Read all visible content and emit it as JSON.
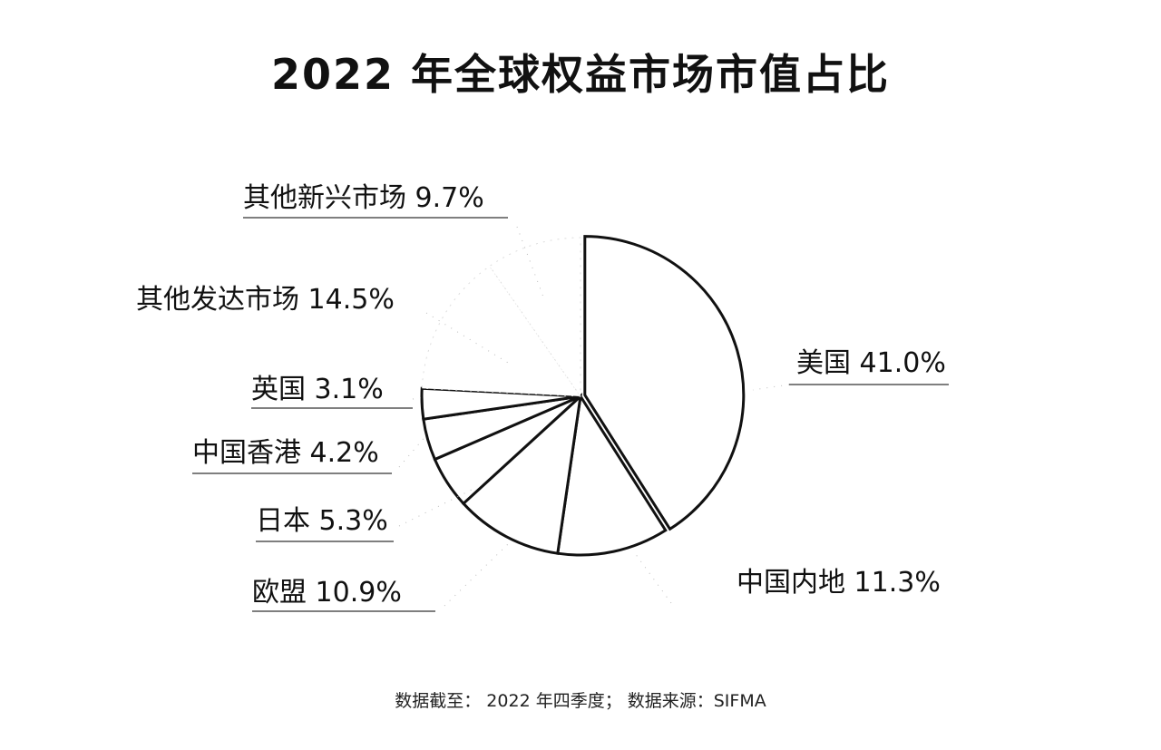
{
  "title": "2022 年全球权益市场市值占比",
  "footer": "数据截至： 2022 年四季度； 数据来源：SIFMA",
  "chart_data": {
    "type": "pie",
    "title": "2022 年全球权益市场市值占比",
    "unit": "%",
    "start": "12 o'clock",
    "direction": "clockwise",
    "exploded": "美国",
    "colors": {
      "fill": "#ffffff",
      "stroke": "#111111"
    },
    "slices": [
      {
        "label": "美国",
        "value": 41.0,
        "text": "美国 41.0%"
      },
      {
        "label": "中国内地",
        "value": 11.3,
        "text": "中国内地 11.3%"
      },
      {
        "label": "欧盟",
        "value": 10.9,
        "text": "欧盟 10.9%"
      },
      {
        "label": "日本",
        "value": 5.3,
        "text": "日本 5.3%"
      },
      {
        "label": "中国香港",
        "value": 4.2,
        "text": "中国香港 4.2%"
      },
      {
        "label": "英国",
        "value": 3.1,
        "text": "英国 3.1%"
      },
      {
        "label": "其他发达市场",
        "value": 14.5,
        "text": "其他发达市场 14.5%"
      },
      {
        "label": "其他新兴市场",
        "value": 9.7,
        "text": "其他新兴市场 9.7%"
      }
    ]
  }
}
